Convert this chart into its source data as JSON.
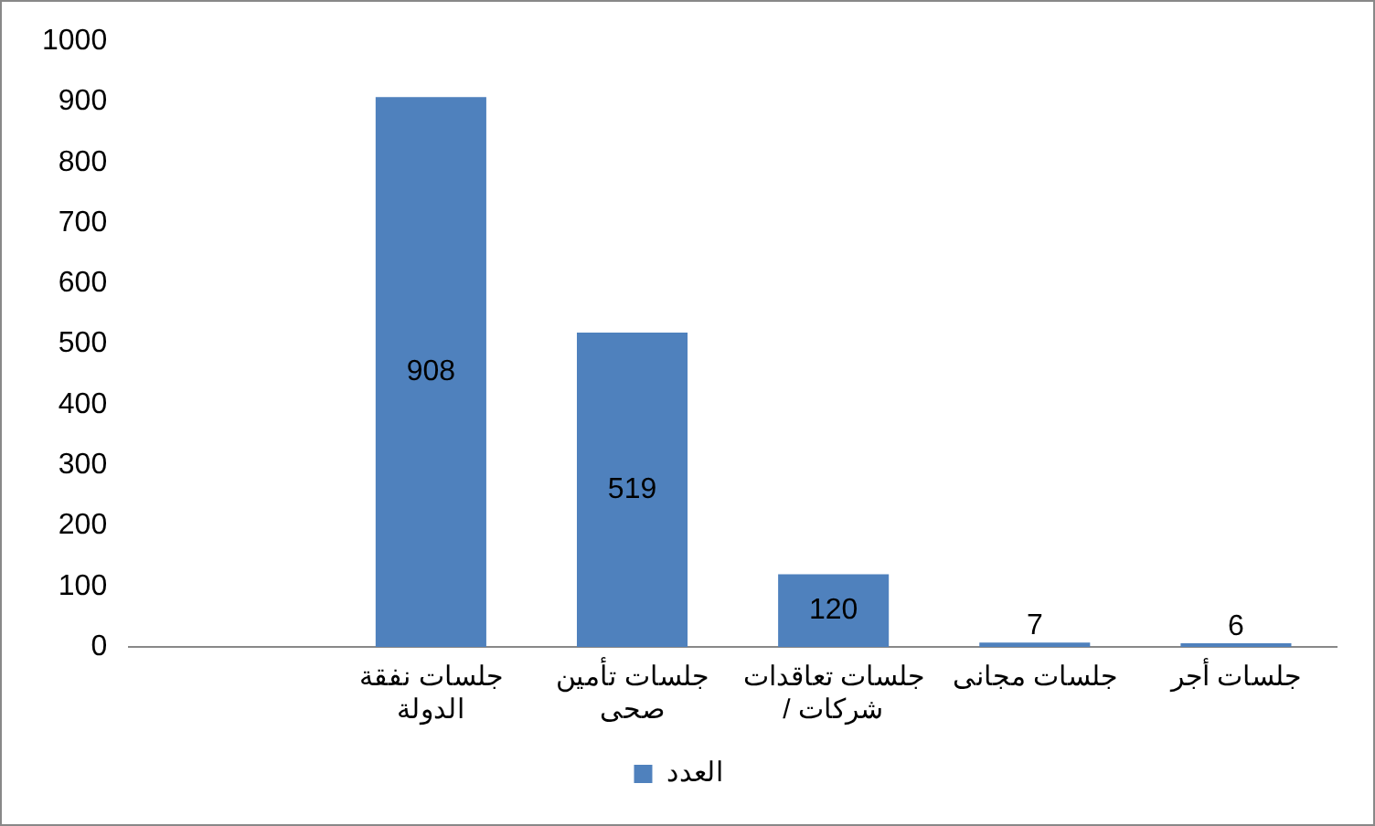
{
  "chart_data": {
    "type": "bar",
    "categories": [
      null,
      "جلسات نفقة الدولة",
      "جلسات تأمين صحى",
      "جلسات تعاقدات / شركات",
      "جلسات مجانى",
      "جلسات أجر"
    ],
    "series": [
      {
        "name": "العدد",
        "color": "#4f81bd",
        "values": [
          null,
          908,
          519,
          120,
          7,
          6
        ]
      }
    ],
    "ylim": [
      0,
      1000
    ],
    "yticks": [
      0,
      100,
      200,
      300,
      400,
      500,
      600,
      700,
      800,
      900,
      1000
    ],
    "grid": false,
    "legend": "bottom",
    "data_labels": true
  }
}
